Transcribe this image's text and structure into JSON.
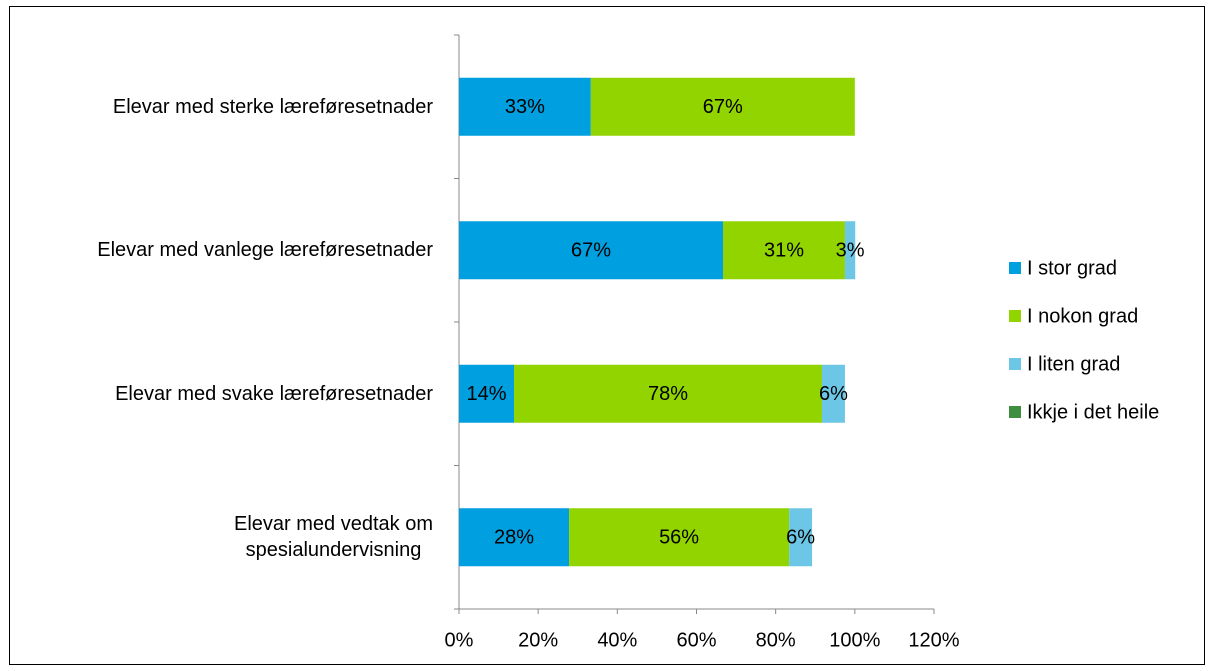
{
  "chart_data": {
    "type": "stacked-bar-horizontal",
    "categories": [
      "Elevar med sterke læreføresetnader",
      "Elevar med vanlege læreføresetnader",
      "Elevar med svake læreføresetnader",
      "Elevar med vedtak om\nspesialundervisning"
    ],
    "series": [
      {
        "name": "I stor grad",
        "color": "#009fdf",
        "values": [
          33.3,
          66.7,
          13.9,
          27.8
        ],
        "value_labels": [
          "33%",
          "67%",
          "14%",
          "28%"
        ]
      },
      {
        "name": "I nokon grad",
        "color": "#92d400",
        "values": [
          66.7,
          30.8,
          77.8,
          55.6
        ],
        "value_labels": [
          "67%",
          "31%",
          "78%",
          "56%"
        ]
      },
      {
        "name": "I liten grad",
        "color": "#6cc7e6",
        "values": [
          0,
          2.6,
          5.8,
          5.8
        ],
        "value_labels": [
          null,
          "3%",
          "6%",
          "6%"
        ]
      },
      {
        "name": "Ikkje i det heile",
        "color": "#3e8e3f",
        "values": [
          0,
          0,
          0,
          0
        ],
        "value_labels": [
          null,
          null,
          null,
          null
        ]
      }
    ],
    "xlim": [
      0,
      120
    ],
    "xticks": [
      {
        "value": 0,
        "label": "0%"
      },
      {
        "value": 20,
        "label": "20%"
      },
      {
        "value": 40,
        "label": "40%"
      },
      {
        "value": 60,
        "label": "60%"
      },
      {
        "value": 80,
        "label": "80%"
      },
      {
        "value": 100,
        "label": "100%"
      },
      {
        "value": 120,
        "label": "120%"
      }
    ],
    "legend": "right"
  }
}
